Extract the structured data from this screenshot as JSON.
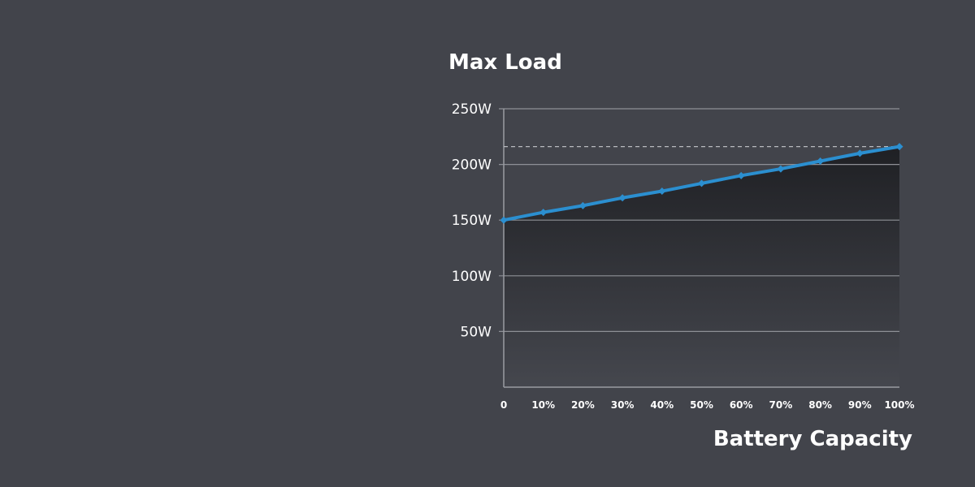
{
  "chart_data": {
    "type": "area",
    "title": "Max Load",
    "xlabel": "Battery Capacity",
    "ylabel": "",
    "categories": [
      "0",
      "10%",
      "20%",
      "30%",
      "40%",
      "50%",
      "60%",
      "70%",
      "80%",
      "90%",
      "100%"
    ],
    "x": [
      0,
      10,
      20,
      30,
      40,
      50,
      60,
      70,
      80,
      90,
      100
    ],
    "series": [
      {
        "values": [
          150,
          157,
          163,
          170,
          176,
          183,
          190,
          196,
          203,
          210,
          216
        ]
      }
    ],
    "ylim": [
      0,
      250
    ],
    "y_ticks": [
      50,
      100,
      150,
      200,
      250
    ],
    "y_tick_labels": [
      "50W",
      "100W",
      "150W",
      "200W",
      "250W"
    ],
    "reference_line": 216,
    "grid": true,
    "legend": "none"
  },
  "colors": {
    "background": "#42444b",
    "series": "#2b8fd0",
    "fill_top": "#1f2024",
    "fill_bottom": "#45474e"
  }
}
